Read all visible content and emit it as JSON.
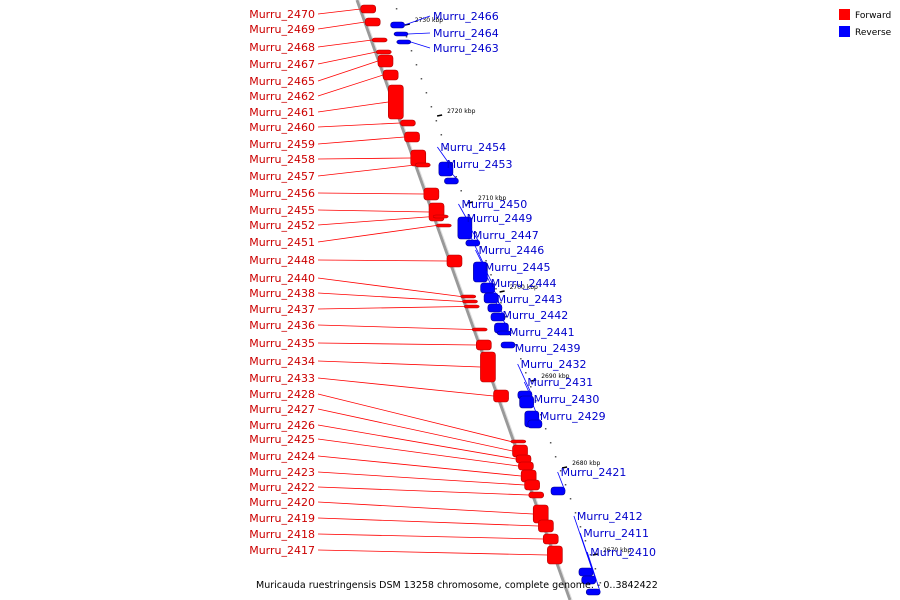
{
  "legend": [
    {
      "label": "Forward",
      "color": "#ff0000"
    },
    {
      "label": "Reverse",
      "color": "#0000ff"
    }
  ],
  "caption": "Muricauda ruestringensis DSM 13258 chromosome, complete genome. - 0..3842422",
  "axis_ticks": [
    "2730 kbp",
    "2720 kbp",
    "2710 kbp",
    "2700 kbp",
    "2690 kbp",
    "2680 kbp",
    "2670 kbp"
  ],
  "forward_genes": [
    "Murru_2470",
    "Murru_2469",
    "Murru_2468",
    "Murru_2467",
    "Murru_2465",
    "Murru_2462",
    "Murru_2461",
    "Murru_2460",
    "Murru_2459",
    "Murru_2458",
    "Murru_2457",
    "Murru_2456",
    "Murru_2455",
    "Murru_2452",
    "Murru_2451",
    "Murru_2448",
    "Murru_2440",
    "Murru_2438",
    "Murru_2437",
    "Murru_2436",
    "Murru_2435",
    "Murru_2434",
    "Murru_2433",
    "Murru_2428",
    "Murru_2427",
    "Murru_2426",
    "Murru_2425",
    "Murru_2424",
    "Murru_2423",
    "Murru_2422",
    "Murru_2420",
    "Murru_2419",
    "Murru_2418",
    "Murru_2417"
  ],
  "reverse_genes": [
    "Murru_2466",
    "Murru_2464",
    "Murru_2463",
    "Murru_2454",
    "Murru_2453",
    "Murru_2450",
    "Murru_2449",
    "Murru_2447",
    "Murru_2446",
    "Murru_2445",
    "Murru_2444",
    "Murru_2443",
    "Murru_2442",
    "Murru_2441",
    "Murru_2439",
    "Murru_2432",
    "Murru_2431",
    "Murru_2430",
    "Murru_2429",
    "Murru_2421",
    "Murru_2412",
    "Murru_2411",
    "Murru_2410"
  ],
  "colors": {
    "forward": "#ff0000",
    "reverse": "#0000ff",
    "forward_label": "#cc0000",
    "reverse_label": "#0000cc",
    "backbone": "#999999"
  }
}
